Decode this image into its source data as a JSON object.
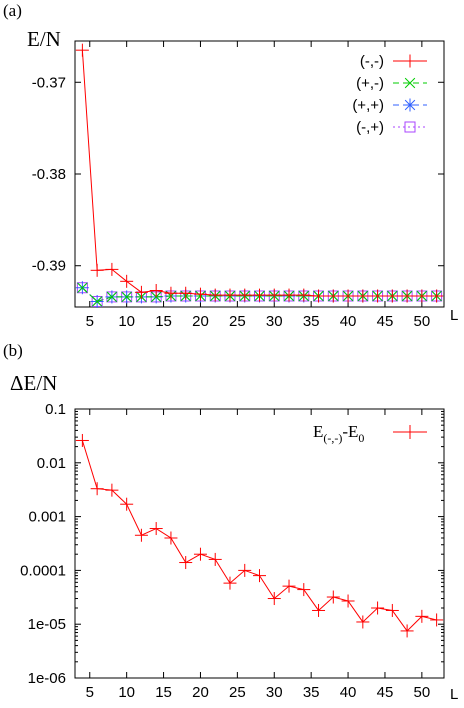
{
  "panels": [
    {
      "label": "(a)",
      "ylabel": "E/N",
      "xlabel": "L"
    },
    {
      "label": "(b)",
      "ylabel": "ΔE/N",
      "xlabel": "L"
    }
  ],
  "chart_data": [
    {
      "type": "line",
      "title": "",
      "xlabel": "L",
      "ylabel": "E/N",
      "xlim": [
        3,
        53
      ],
      "ylim": [
        -0.3945,
        -0.3655
      ],
      "xticks": [
        5,
        10,
        15,
        20,
        25,
        30,
        35,
        40,
        45,
        50
      ],
      "xtick_labels": [
        "5",
        "10",
        "15",
        "20",
        "25",
        "30",
        "35",
        "40",
        "45",
        "50"
      ],
      "yticks": [
        -0.37,
        -0.38,
        -0.39
      ],
      "ytick_labels": [
        "-0.37",
        "-0.38",
        "-0.39"
      ],
      "grid": false,
      "legend_position": "top-right",
      "x": [
        4,
        6,
        8,
        10,
        12,
        14,
        16,
        18,
        20,
        22,
        24,
        26,
        28,
        30,
        32,
        34,
        36,
        38,
        40,
        42,
        44,
        46,
        48,
        50,
        52
      ],
      "series": [
        {
          "name": "(-,-)",
          "color": "#ff0000",
          "marker": "plus",
          "line": "solid",
          "values": [
            -0.3665,
            -0.3905,
            -0.3904,
            -0.3917,
            -0.3929,
            -0.3927,
            -0.393,
            -0.393,
            -0.3931,
            -0.3932,
            -0.3932,
            -0.3932,
            -0.3932,
            -0.3932,
            -0.3932,
            -0.3932,
            -0.3933,
            -0.3933,
            -0.3933,
            -0.3933,
            -0.3933,
            -0.3933,
            -0.3933,
            -0.3933,
            -0.3933
          ]
        },
        {
          "name": "(+,-)",
          "color": "#00cc00",
          "marker": "cross",
          "line": "dashed",
          "values": [
            -0.3924,
            -0.3939,
            -0.3934,
            -0.3934,
            -0.3934,
            -0.3934,
            -0.3933,
            -0.3933,
            -0.3933,
            -0.3933,
            -0.3933,
            -0.3933,
            -0.3933,
            -0.3933,
            -0.3933,
            -0.3933,
            -0.3933,
            -0.3933,
            -0.3933,
            -0.3933,
            -0.3933,
            -0.3933,
            -0.3933,
            -0.3933,
            -0.3933
          ]
        },
        {
          "name": "(+,+)",
          "color": "#3060ff",
          "marker": "star",
          "line": "dashed",
          "values": [
            -0.3924,
            -0.3939,
            -0.3934,
            -0.3934,
            -0.3934,
            -0.3934,
            -0.3933,
            -0.3933,
            -0.3933,
            -0.3933,
            -0.3933,
            -0.3933,
            -0.3933,
            -0.3933,
            -0.3933,
            -0.3933,
            -0.3933,
            -0.3933,
            -0.3933,
            -0.3933,
            -0.3933,
            -0.3933,
            -0.3933,
            -0.3933,
            -0.3933
          ]
        },
        {
          "name": "(-,+)",
          "color": "#aa44ff",
          "marker": "square",
          "line": "dotted",
          "values": [
            -0.3924,
            -0.3939,
            -0.3934,
            -0.3934,
            -0.3934,
            -0.3934,
            -0.3933,
            -0.3933,
            -0.3933,
            -0.3933,
            -0.3933,
            -0.3933,
            -0.3933,
            -0.3933,
            -0.3933,
            -0.3933,
            -0.3933,
            -0.3933,
            -0.3933,
            -0.3933,
            -0.3933,
            -0.3933,
            -0.3933,
            -0.3933,
            -0.3933
          ]
        }
      ]
    },
    {
      "type": "line",
      "title": "",
      "xlabel": "L",
      "ylabel": "ΔE/N",
      "yscale": "log",
      "xlim": [
        3,
        53
      ],
      "ylim": [
        1e-06,
        0.1
      ],
      "xticks": [
        5,
        10,
        15,
        20,
        25,
        30,
        35,
        40,
        45,
        50
      ],
      "xtick_labels": [
        "5",
        "10",
        "15",
        "20",
        "25",
        "30",
        "35",
        "40",
        "45",
        "50"
      ],
      "yticks": [
        0.1,
        0.01,
        0.001,
        0.0001,
        1e-05,
        1e-06
      ],
      "ytick_labels": [
        "0.1",
        "0.01",
        "0.001",
        "0.0001",
        "1e-05",
        "1e-06"
      ],
      "grid": false,
      "legend_position": "top-right",
      "x": [
        4,
        6,
        8,
        10,
        12,
        14,
        16,
        18,
        20,
        22,
        24,
        26,
        28,
        30,
        32,
        34,
        36,
        38,
        40,
        42,
        44,
        46,
        48,
        50,
        52
      ],
      "series": [
        {
          "name": "E(-,-)-E0",
          "legend_main": "E",
          "legend_sub1": "(-,-)",
          "legend_mid": "-E",
          "legend_sub2": "0",
          "color": "#ff0000",
          "marker": "plus",
          "line": "solid",
          "values": [
            0.026,
            0.0033,
            0.0031,
            0.0017,
            0.00045,
            0.0006,
            0.0004,
            0.00014,
            0.0002,
            0.00016,
            5.8e-05,
            0.0001,
            8e-05,
            3e-05,
            5.1e-05,
            4.4e-05,
            1.8e-05,
            3.2e-05,
            2.7e-05,
            1.1e-05,
            2e-05,
            1.8e-05,
            7.5e-06,
            1.4e-05,
            1.2e-05
          ]
        }
      ]
    }
  ]
}
